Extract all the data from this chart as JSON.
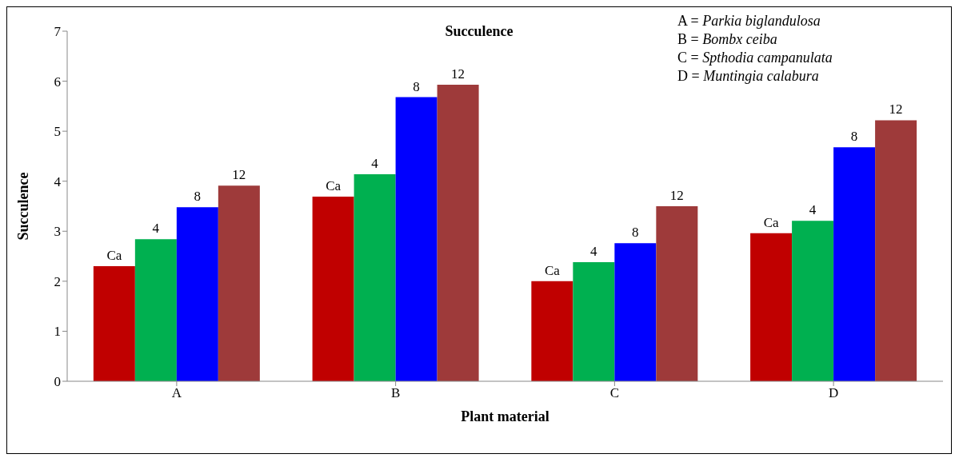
{
  "chart_data": {
    "type": "bar",
    "title": "Succulence",
    "xlabel": "Plant material",
    "ylabel": "Succulence",
    "categories": [
      "A",
      "B",
      "C",
      "D"
    ],
    "series": [
      {
        "name": "Ca",
        "color": "#c00000",
        "values": [
          2.3,
          3.69,
          2.0,
          2.96
        ]
      },
      {
        "name": "4",
        "color": "#00b050",
        "values": [
          2.84,
          4.14,
          2.38,
          3.21
        ]
      },
      {
        "name": "8",
        "color": "#0000ff",
        "values": [
          3.48,
          5.68,
          2.76,
          4.68
        ]
      },
      {
        "name": "12",
        "color": "#9e3a3a",
        "values": [
          3.91,
          5.93,
          3.5,
          5.22
        ]
      }
    ],
    "ylim": [
      0,
      7
    ],
    "yticks": [
      0,
      1,
      2,
      3,
      4,
      5,
      6,
      7
    ],
    "grid": false,
    "legend": false,
    "annotations": [
      "A = Parkia biglandulosa",
      "B = Bombx ceiba",
      "C = Spthodia campanulata",
      "D = Muntingia calabura"
    ]
  }
}
